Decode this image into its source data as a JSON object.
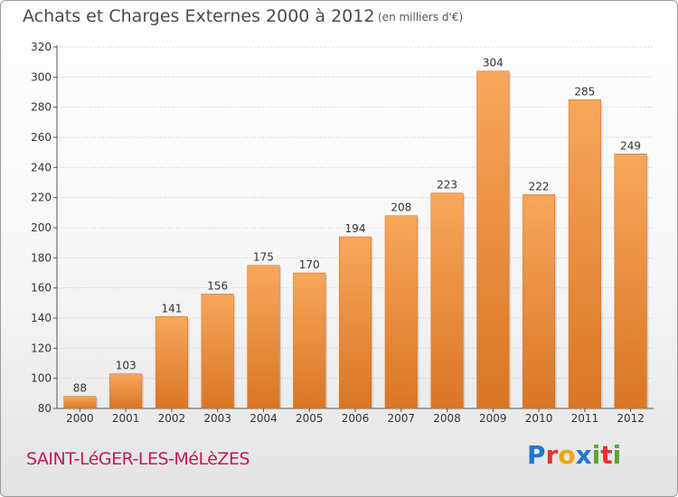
{
  "chart": {
    "title": "Achats et Charges Externes 2000 à 2012",
    "subtitle": "(en milliers d'€)",
    "place": "SAINT-LéGER-LES-MéLèZES",
    "logo": "Proxiti"
  },
  "colors": {
    "bar_light": "#f7a75a",
    "bar_dark": "#d97625",
    "grid": "#c8c8c8",
    "axis": "#555555",
    "place": "#c2185b",
    "logo": [
      "#1f77d0",
      "#e8322f",
      "#f0a500",
      "#1f77d0",
      "#5aa832",
      "#e8322f",
      "#5aa832"
    ]
  },
  "chart_data": {
    "type": "bar",
    "title": "Achats et Charges Externes 2000 à 2012",
    "subtitle": "(en milliers d'€)",
    "xlabel": "",
    "ylabel": "",
    "categories": [
      "2000",
      "2001",
      "2002",
      "2003",
      "2004",
      "2005",
      "2006",
      "2007",
      "2008",
      "2009",
      "2010",
      "2011",
      "2012"
    ],
    "values": [
      88,
      103,
      141,
      156,
      175,
      170,
      194,
      208,
      223,
      304,
      222,
      285,
      249
    ],
    "ylim": [
      80,
      320
    ],
    "yticks": [
      80,
      100,
      120,
      140,
      160,
      180,
      200,
      220,
      240,
      260,
      280,
      300,
      320
    ],
    "grid": true,
    "legend": "none"
  }
}
